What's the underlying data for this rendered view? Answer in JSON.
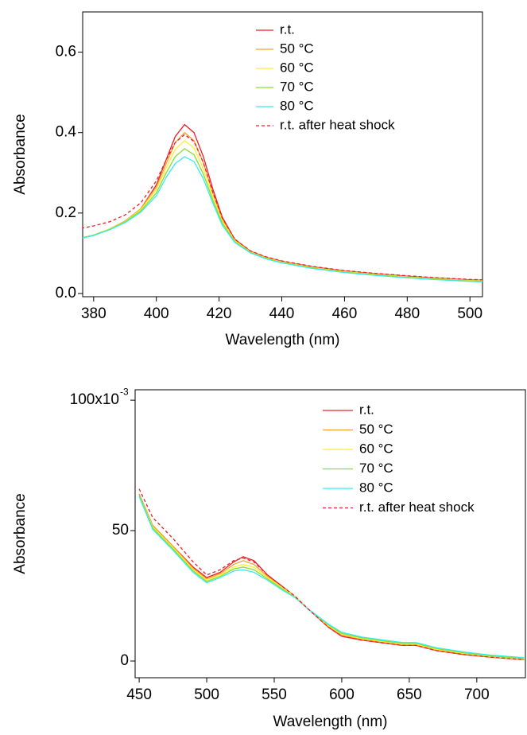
{
  "chart_data": [
    {
      "type": "line",
      "x_label": "Wavelength (nm)",
      "y_label": "Absorbance",
      "xlim": [
        376.5,
        504
      ],
      "xticks": [
        380,
        400,
        420,
        440,
        460,
        480,
        500
      ],
      "ylim": [
        -0.008,
        0.7
      ],
      "yticks": [
        {
          "value": 0,
          "label": "0.0"
        },
        0.2,
        0.4,
        0.6
      ],
      "x": [
        376,
        380,
        385,
        390,
        395,
        400,
        403,
        406,
        409,
        412,
        415,
        418,
        421,
        425,
        430,
        435,
        440,
        450,
        460,
        470,
        480,
        490,
        500,
        504
      ],
      "series": [
        {
          "name": "r.t.",
          "color": "#e8202a",
          "style": "solid",
          "values": [
            0.138,
            0.145,
            0.16,
            0.18,
            0.21,
            0.27,
            0.33,
            0.39,
            0.42,
            0.4,
            0.34,
            0.26,
            0.19,
            0.135,
            0.105,
            0.09,
            0.08,
            0.066,
            0.056,
            0.049,
            0.043,
            0.038,
            0.034,
            0.033
          ]
        },
        {
          "name": "50 °C",
          "color": "#f5a030",
          "style": "solid",
          "values": [
            0.138,
            0.145,
            0.16,
            0.18,
            0.21,
            0.265,
            0.32,
            0.375,
            0.4,
            0.38,
            0.325,
            0.25,
            0.185,
            0.133,
            0.104,
            0.089,
            0.079,
            0.065,
            0.055,
            0.048,
            0.042,
            0.037,
            0.033,
            0.032
          ]
        },
        {
          "name": "60 °C",
          "color": "#ffee33",
          "style": "solid",
          "values": [
            0.138,
            0.145,
            0.16,
            0.179,
            0.208,
            0.258,
            0.31,
            0.358,
            0.38,
            0.362,
            0.31,
            0.24,
            0.18,
            0.131,
            0.103,
            0.088,
            0.078,
            0.064,
            0.054,
            0.047,
            0.041,
            0.036,
            0.032,
            0.031
          ]
        },
        {
          "name": "70 °C",
          "color": "#88dd33",
          "style": "solid",
          "values": [
            0.138,
            0.145,
            0.159,
            0.178,
            0.205,
            0.25,
            0.298,
            0.34,
            0.36,
            0.345,
            0.297,
            0.232,
            0.175,
            0.129,
            0.102,
            0.087,
            0.077,
            0.063,
            0.053,
            0.046,
            0.04,
            0.035,
            0.031,
            0.03
          ]
        },
        {
          "name": "80 °C",
          "color": "#33eeee",
          "style": "solid",
          "values": [
            0.137,
            0.144,
            0.158,
            0.176,
            0.202,
            0.243,
            0.287,
            0.323,
            0.34,
            0.328,
            0.285,
            0.225,
            0.17,
            0.127,
            0.101,
            0.086,
            0.076,
            0.062,
            0.052,
            0.045,
            0.039,
            0.034,
            0.03,
            0.029
          ]
        },
        {
          "name": "r.t. after heat shock",
          "color": "#e8202a",
          "style": "dashed",
          "values": [
            0.162,
            0.168,
            0.178,
            0.195,
            0.225,
            0.28,
            0.33,
            0.375,
            0.395,
            0.378,
            0.325,
            0.252,
            0.188,
            0.135,
            0.106,
            0.091,
            0.081,
            0.067,
            0.057,
            0.05,
            0.044,
            0.039,
            0.035,
            0.034
          ]
        }
      ]
    },
    {
      "type": "line",
      "x_label": "Wavelength (nm)",
      "y_label": "Absorbance",
      "xlim": [
        447,
        736
      ],
      "xticks": [
        450,
        500,
        550,
        600,
        650,
        700
      ],
      "ylim": [
        -6.4,
        104
      ],
      "yticks": [
        0,
        50,
        {
          "value": 100,
          "label": "100x10"
        }
      ],
      "y_exponent": "-3",
      "x": [
        450,
        460,
        475,
        490,
        500,
        510,
        520,
        527,
        535,
        545,
        555,
        565,
        575,
        590,
        600,
        615,
        630,
        645,
        655,
        670,
        690,
        710,
        735
      ],
      "series": [
        {
          "name": "r.t.",
          "color": "#e8202a",
          "style": "solid",
          "values": [
            64,
            52,
            44,
            36,
            32,
            34,
            38,
            40,
            38.5,
            33,
            29,
            25,
            20,
            13,
            9.5,
            8,
            7,
            6,
            6,
            4,
            2.5,
            1.5,
            0.5
          ]
        },
        {
          "name": "50 °C",
          "color": "#f5a030",
          "style": "solid",
          "values": [
            64,
            52,
            44,
            35.5,
            31.5,
            33.5,
            37,
            38.5,
            37,
            32.5,
            28.5,
            25,
            20,
            13.3,
            10,
            8.3,
            7.2,
            6.2,
            6.2,
            4.2,
            2.7,
            1.6,
            0.6
          ]
        },
        {
          "name": "60 °C",
          "color": "#ffee33",
          "style": "solid",
          "values": [
            63.5,
            51.5,
            43.5,
            35,
            31,
            33,
            36,
            37,
            36,
            32,
            28.5,
            25,
            20,
            13.6,
            10.3,
            8.6,
            7.5,
            6.5,
            6.5,
            4.5,
            3,
            1.8,
            0.8
          ]
        },
        {
          "name": "70 °C",
          "color": "#88dd33",
          "style": "solid",
          "values": [
            63.5,
            51,
            43,
            34.5,
            30.5,
            32.5,
            35.3,
            36,
            35,
            31.5,
            28,
            24.5,
            20,
            13.9,
            10.6,
            8.9,
            7.8,
            6.8,
            6.8,
            4.8,
            3.2,
            2,
            1
          ]
        },
        {
          "name": "80 °C",
          "color": "#33eeee",
          "style": "solid",
          "values": [
            63,
            50.5,
            42.5,
            34,
            30,
            32,
            34.5,
            35,
            34,
            31,
            27.5,
            24.5,
            20,
            14.2,
            11,
            9.2,
            8.1,
            7.1,
            7.1,
            5.1,
            3.5,
            2.3,
            1.3
          ]
        },
        {
          "name": "r.t. after heat shock",
          "color": "#e8202a",
          "style": "dashed",
          "values": [
            66,
            55,
            47,
            38,
            33,
            35,
            38.5,
            39.5,
            38,
            33,
            29,
            25,
            20,
            13,
            9.5,
            8,
            7,
            6,
            6,
            4,
            2.5,
            1.5,
            0.5
          ]
        }
      ]
    }
  ]
}
